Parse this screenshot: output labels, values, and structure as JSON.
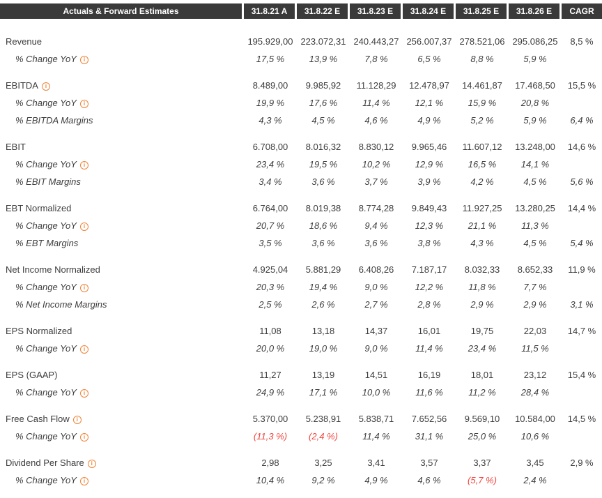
{
  "header": {
    "title": "Actuals & Forward Estimates",
    "columns": [
      "31.8.21 A",
      "31.8.22 E",
      "31.8.23 E",
      "31.8.24 E",
      "31.8.25 E",
      "31.8.26 E",
      "CAGR"
    ]
  },
  "colors": {
    "header_bg": "#3a3a3a",
    "text": "#3d3d3d",
    "negative": "#f0443c",
    "info_icon": "#ee8336"
  },
  "icons": {
    "info": "i"
  },
  "groups": [
    {
      "rows": [
        {
          "label": "Revenue",
          "type": "main",
          "info": false,
          "values": [
            "195.929,00",
            "223.072,31",
            "240.443,27",
            "256.007,37",
            "278.521,06",
            "295.086,25"
          ],
          "cagr": "8,5 %"
        },
        {
          "label": "% Change YoY",
          "type": "sub",
          "info": true,
          "values": [
            "17,5 %",
            "13,9 %",
            "7,8 %",
            "6,5 %",
            "8,8 %",
            "5,9 %"
          ],
          "cagr": ""
        }
      ]
    },
    {
      "rows": [
        {
          "label": "EBITDA",
          "type": "main",
          "info": true,
          "values": [
            "8.489,00",
            "9.985,92",
            "11.128,29",
            "12.478,97",
            "14.461,87",
            "17.468,50"
          ],
          "cagr": "15,5 %"
        },
        {
          "label": "% Change YoY",
          "type": "sub",
          "info": true,
          "values": [
            "19,9 %",
            "17,6 %",
            "11,4 %",
            "12,1 %",
            "15,9 %",
            "20,8 %"
          ],
          "cagr": ""
        },
        {
          "label": "% EBITDA Margins",
          "type": "sub",
          "info": false,
          "values": [
            "4,3 %",
            "4,5 %",
            "4,6 %",
            "4,9 %",
            "5,2 %",
            "5,9 %"
          ],
          "cagr": "6,4 %"
        }
      ]
    },
    {
      "rows": [
        {
          "label": "EBIT",
          "type": "main",
          "info": false,
          "values": [
            "6.708,00",
            "8.016,32",
            "8.830,12",
            "9.965,46",
            "11.607,12",
            "13.248,00"
          ],
          "cagr": "14,6 %"
        },
        {
          "label": "% Change YoY",
          "type": "sub",
          "info": true,
          "values": [
            "23,4 %",
            "19,5 %",
            "10,2 %",
            "12,9 %",
            "16,5 %",
            "14,1 %"
          ],
          "cagr": ""
        },
        {
          "label": "% EBIT Margins",
          "type": "sub",
          "info": false,
          "values": [
            "3,4 %",
            "3,6 %",
            "3,7 %",
            "3,9 %",
            "4,2 %",
            "4,5 %"
          ],
          "cagr": "5,6 %"
        }
      ]
    },
    {
      "rows": [
        {
          "label": "EBT Normalized",
          "type": "main",
          "info": false,
          "values": [
            "6.764,00",
            "8.019,38",
            "8.774,28",
            "9.849,43",
            "11.927,25",
            "13.280,25"
          ],
          "cagr": "14,4 %"
        },
        {
          "label": "% Change YoY",
          "type": "sub",
          "info": true,
          "values": [
            "20,7 %",
            "18,6 %",
            "9,4 %",
            "12,3 %",
            "21,1 %",
            "11,3 %"
          ],
          "cagr": ""
        },
        {
          "label": "% EBT Margins",
          "type": "sub",
          "info": false,
          "values": [
            "3,5 %",
            "3,6 %",
            "3,6 %",
            "3,8 %",
            "4,3 %",
            "4,5 %"
          ],
          "cagr": "5,4 %"
        }
      ]
    },
    {
      "rows": [
        {
          "label": "Net Income Normalized",
          "type": "main",
          "info": false,
          "values": [
            "4.925,04",
            "5.881,29",
            "6.408,26",
            "7.187,17",
            "8.032,33",
            "8.652,33"
          ],
          "cagr": "11,9 %"
        },
        {
          "label": "% Change YoY",
          "type": "sub",
          "info": true,
          "values": [
            "20,3 %",
            "19,4 %",
            "9,0 %",
            "12,2 %",
            "11,8 %",
            "7,7 %"
          ],
          "cagr": ""
        },
        {
          "label": "% Net Income Margins",
          "type": "sub",
          "info": false,
          "values": [
            "2,5 %",
            "2,6 %",
            "2,7 %",
            "2,8 %",
            "2,9 %",
            "2,9 %"
          ],
          "cagr": "3,1 %"
        }
      ]
    },
    {
      "rows": [
        {
          "label": "EPS Normalized",
          "type": "main",
          "info": false,
          "values": [
            "11,08",
            "13,18",
            "14,37",
            "16,01",
            "19,75",
            "22,03"
          ],
          "cagr": "14,7 %"
        },
        {
          "label": "% Change YoY",
          "type": "sub",
          "info": true,
          "values": [
            "20,0 %",
            "19,0 %",
            "9,0 %",
            "11,4 %",
            "23,4 %",
            "11,5 %"
          ],
          "cagr": ""
        }
      ]
    },
    {
      "rows": [
        {
          "label": "EPS (GAAP)",
          "type": "main",
          "info": false,
          "values": [
            "11,27",
            "13,19",
            "14,51",
            "16,19",
            "18,01",
            "23,12"
          ],
          "cagr": "15,4 %"
        },
        {
          "label": "% Change YoY",
          "type": "sub",
          "info": true,
          "values": [
            "24,9 %",
            "17,1 %",
            "10,0 %",
            "11,6 %",
            "11,2 %",
            "28,4 %"
          ],
          "cagr": ""
        }
      ]
    },
    {
      "rows": [
        {
          "label": "Free Cash Flow",
          "type": "main",
          "info": true,
          "values": [
            "5.370,00",
            "5.238,91",
            "5.838,71",
            "7.652,56",
            "9.569,10",
            "10.584,00"
          ],
          "cagr": "14,5 %"
        },
        {
          "label": "% Change YoY",
          "type": "sub",
          "info": true,
          "values": [
            "(11,3 %)",
            "(2,4 %)",
            "11,4 %",
            "31,1 %",
            "25,0 %",
            "10,6 %"
          ],
          "cagr": ""
        }
      ]
    },
    {
      "rows": [
        {
          "label": "Dividend Per Share",
          "type": "main",
          "info": true,
          "values": [
            "2,98",
            "3,25",
            "3,41",
            "3,57",
            "3,37",
            "3,45"
          ],
          "cagr": "2,9 %"
        },
        {
          "label": "% Change YoY",
          "type": "sub",
          "info": true,
          "values": [
            "10,4 %",
            "9,2 %",
            "4,9 %",
            "4,6 %",
            "(5,7 %)",
            "2,4 %"
          ],
          "cagr": ""
        }
      ]
    }
  ]
}
